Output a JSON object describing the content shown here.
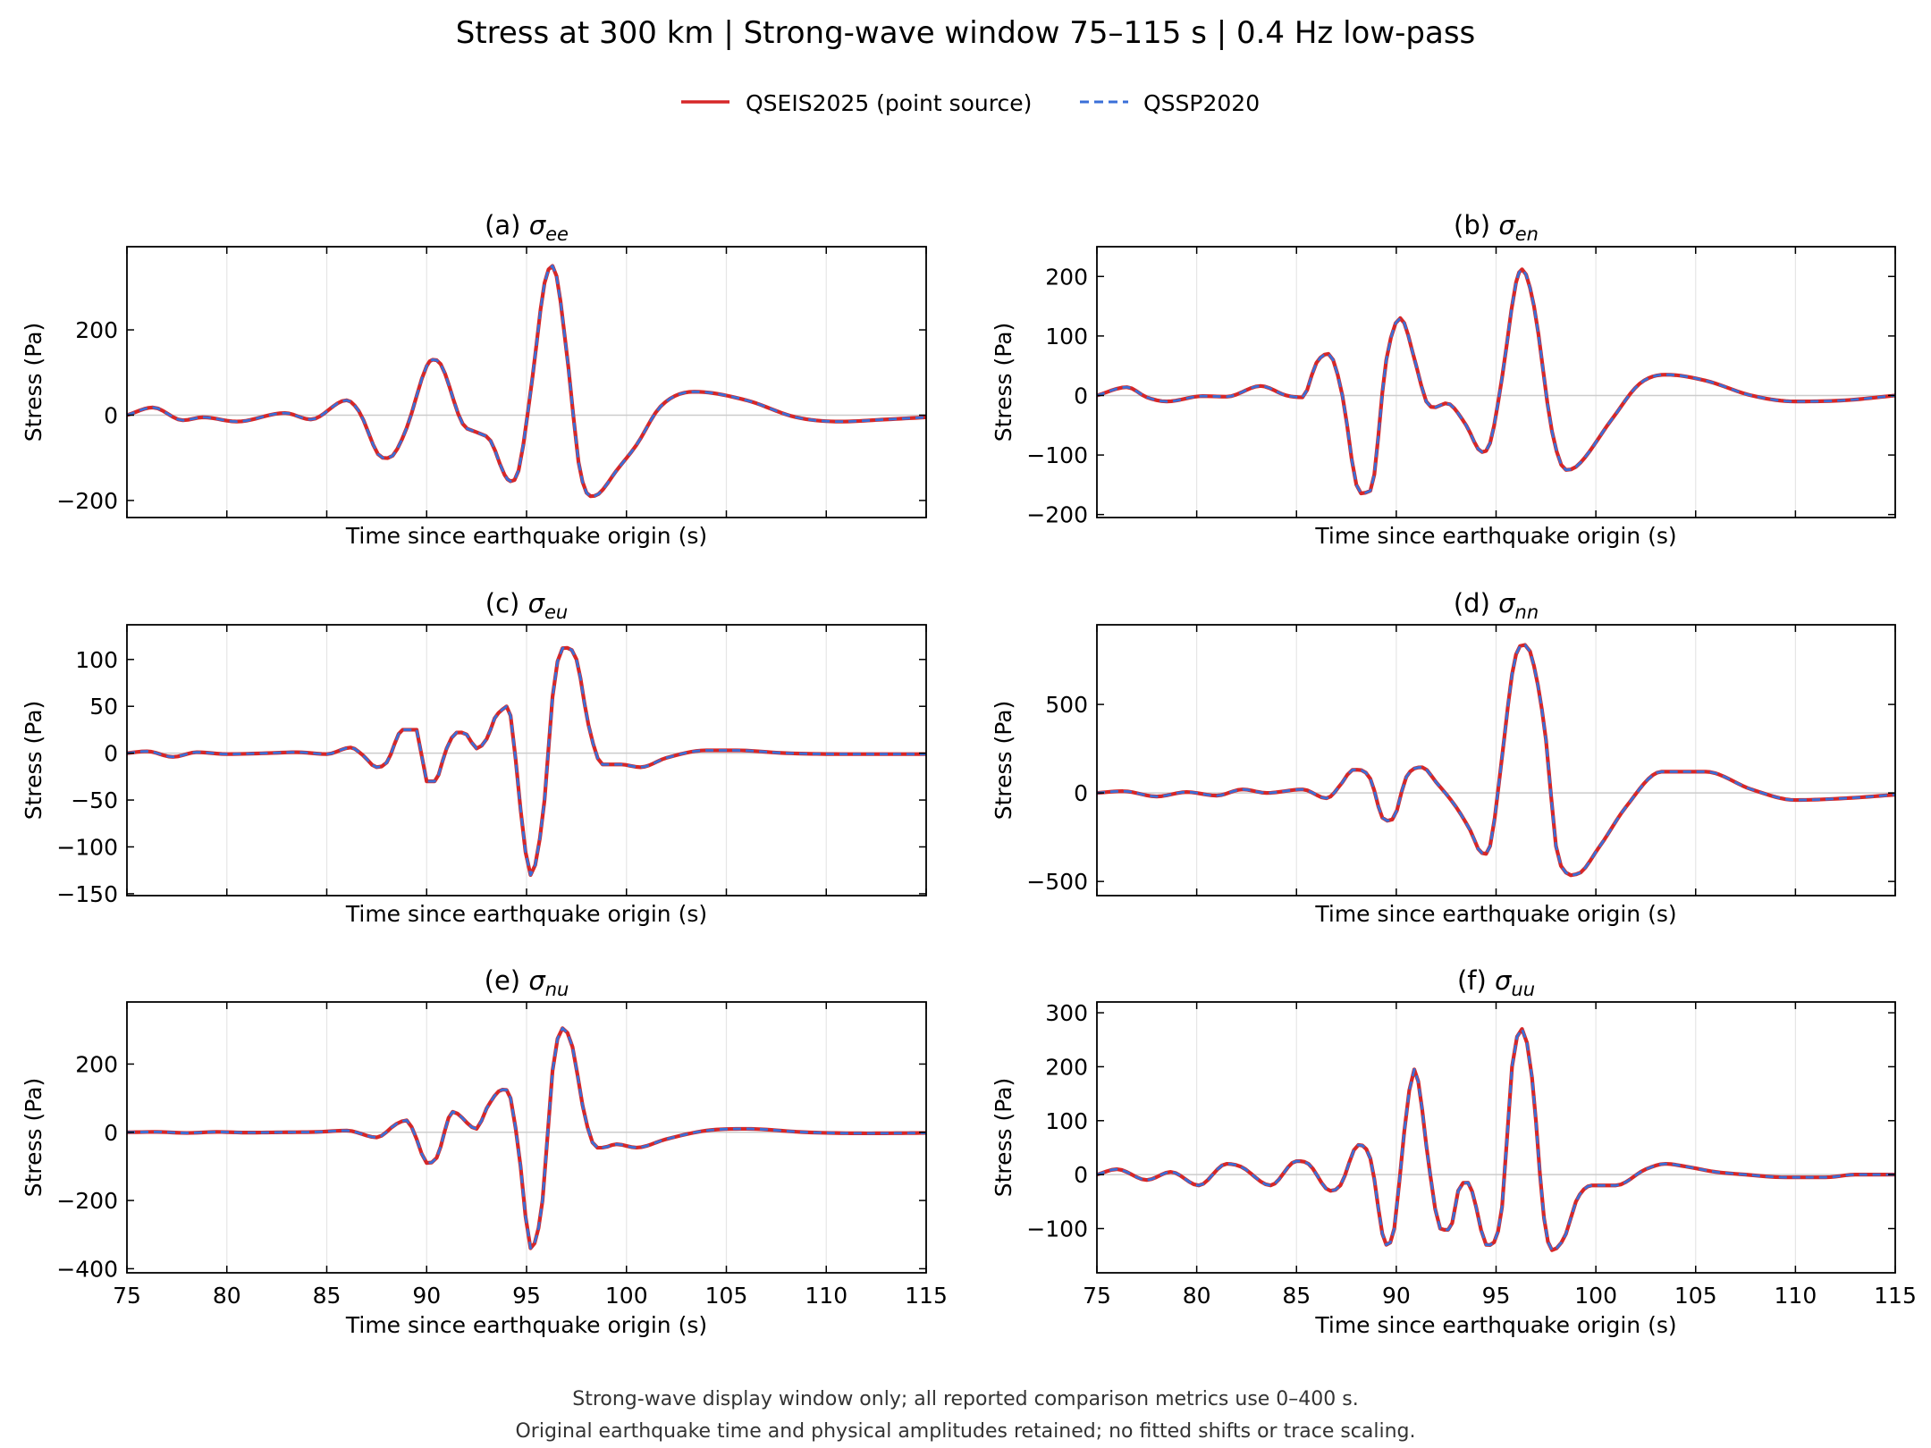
{
  "figure": {
    "title": "Stress at 300 km | Strong-wave window 75–115 s | 0.4 Hz low-pass",
    "notes": [
      "Strong-wave display window only; all reported comparison metrics use 0–400 s.",
      "Original earthquake time and physical amplitudes retained; no fitted shifts or trace scaling."
    ],
    "legend": {
      "placement": "top-center",
      "entries": [
        {
          "label": "QSEIS2025 (point source)",
          "color": "#d62728",
          "style": "solid"
        },
        {
          "label": "QSSP2020",
          "color": "#3a6fd8",
          "style": "dashed"
        }
      ]
    }
  },
  "colors": {
    "qseis": "#d62728",
    "qssp": "#3a6fd8",
    "grid": "#e6e6e6",
    "zero_line": "#cccccc"
  },
  "chart_data": [
    {
      "type": "line",
      "id": "a",
      "title_prefix": "(a) ",
      "sigma_sub": "ee",
      "xlabel": "Time since earthquake origin (s)",
      "ylabel": "Stress (Pa)",
      "xlim": [
        75,
        115
      ],
      "ylim": [
        -240,
        395
      ],
      "xticks": [
        75,
        80,
        85,
        90,
        95,
        100,
        105,
        110,
        115
      ],
      "show_x_tick_labels": false,
      "yticks": [
        -200,
        0,
        200
      ],
      "ytick_labels": [
        "−200",
        "0",
        "200"
      ],
      "series": [
        {
          "name": "QSEIS2025 (point source)",
          "x": [
            75,
            76.3,
            77.8,
            78.8,
            80.5,
            82.9,
            84.2,
            86,
            86.6,
            87.8,
            88.3,
            89,
            90,
            90.3,
            90.7,
            91.8,
            92.5,
            93.2,
            93.9,
            94.2,
            94.6,
            95.3,
            95.9,
            96.3,
            97.1,
            97.6,
            98.2,
            98.6,
            99.5,
            100.5,
            101.7,
            103.4,
            106,
            108.5,
            110.7,
            113,
            115
          ],
          "y": [
            0,
            18,
            -12,
            -5,
            -15,
            5,
            -10,
            35,
            10,
            -100,
            -95,
            -30,
            115,
            130,
            120,
            -20,
            -40,
            -60,
            -140,
            -155,
            -130,
            90,
            310,
            350,
            110,
            -110,
            -190,
            -185,
            -130,
            -70,
            20,
            55,
            35,
            -5,
            -15,
            -10,
            -5
          ]
        }
      ]
    },
    {
      "type": "line",
      "id": "b",
      "title_prefix": "(b) ",
      "sigma_sub": "en",
      "xlabel": "Time since earthquake origin (s)",
      "ylabel": "Stress (Pa)",
      "xlim": [
        75,
        115
      ],
      "ylim": [
        -205,
        250
      ],
      "xticks": [
        75,
        80,
        85,
        90,
        95,
        100,
        105,
        110,
        115
      ],
      "show_x_tick_labels": false,
      "yticks": [
        -200,
        -100,
        0,
        100,
        200
      ],
      "ytick_labels": [
        "−200",
        "−100",
        "0",
        "100",
        "200"
      ],
      "series": [
        {
          "name": "QSEIS2025 (point source)",
          "x": [
            75,
            76.5,
            77.5,
            78.5,
            80.3,
            81.5,
            83.2,
            84.5,
            85.3,
            86,
            86.6,
            87.3,
            88,
            88.7,
            89.5,
            90.2,
            91,
            91.5,
            92.7,
            93.5,
            94.3,
            94.7,
            95.3,
            96,
            96.3,
            96.9,
            97.8,
            98.5,
            99,
            100.8,
            102.2,
            103.5,
            105.5,
            107.8,
            110,
            112.5,
            115
          ],
          "y": [
            0,
            14,
            -3,
            -10,
            -1,
            -2,
            16,
            0,
            -3,
            55,
            70,
            0,
            -150,
            -160,
            60,
            130,
            50,
            -10,
            -15,
            -50,
            -95,
            -80,
            30,
            190,
            212,
            150,
            -60,
            -125,
            -120,
            -40,
            20,
            35,
            25,
            0,
            -10,
            -8,
            0
          ]
        }
      ]
    },
    {
      "type": "line",
      "id": "c",
      "title_prefix": "(c) ",
      "sigma_sub": "eu",
      "xlabel": "Time since earthquake origin (s)",
      "ylabel": "Stress (Pa)",
      "xlim": [
        75,
        115
      ],
      "ylim": [
        -152,
        137
      ],
      "xticks": [
        75,
        80,
        85,
        90,
        95,
        100,
        105,
        110,
        115
      ],
      "show_x_tick_labels": false,
      "yticks": [
        -150,
        -100,
        -50,
        0,
        50,
        100
      ],
      "ytick_labels": [
        "−150",
        "−100",
        "−50",
        "0",
        "50",
        "100"
      ],
      "series": [
        {
          "name": "QSEIS2025 (point source)",
          "x": [
            75,
            76,
            77.3,
            78.5,
            80,
            82,
            83.5,
            85,
            86.2,
            86.8,
            87.5,
            88,
            88.8,
            89.5,
            90,
            90.4,
            91,
            91.5,
            92,
            92.5,
            93,
            93.6,
            94.2,
            94.7,
            95.2,
            95.9,
            96.3,
            96.8,
            97.5,
            98.1,
            98.8,
            99.7,
            100.7,
            102,
            104,
            105.5,
            108,
            111,
            115
          ],
          "y": [
            0,
            2,
            -4,
            1,
            -1,
            0,
            1,
            -1,
            6,
            -2,
            -15,
            -10,
            25,
            25,
            -30,
            -30,
            5,
            22,
            20,
            5,
            15,
            43,
            40,
            -60,
            -130,
            -50,
            60,
            112,
            100,
            30,
            -12,
            -12,
            -15,
            -5,
            3,
            3,
            0,
            -1,
            -1
          ]
        }
      ]
    },
    {
      "type": "line",
      "id": "d",
      "title_prefix": "(d) ",
      "sigma_sub": "nn",
      "xlabel": "Time since earthquake origin (s)",
      "ylabel": "Stress (Pa)",
      "xlim": [
        75,
        115
      ],
      "ylim": [
        -580,
        950
      ],
      "xticks": [
        75,
        80,
        85,
        90,
        95,
        100,
        105,
        110,
        115
      ],
      "show_x_tick_labels": false,
      "yticks": [
        -500,
        0,
        500
      ],
      "ytick_labels": [
        "−500",
        "0",
        "500"
      ],
      "series": [
        {
          "name": "QSEIS2025 (point source)",
          "x": [
            75,
            76.3,
            78,
            79.5,
            81,
            82.3,
            83.5,
            85.3,
            86.5,
            87.3,
            87.8,
            88.7,
            89.3,
            89.8,
            90.5,
            91.3,
            92,
            93,
            93.7,
            94.3,
            94.7,
            95.4,
            95.8,
            96.2,
            96.7,
            97.5,
            98,
            98.5,
            99,
            100.2,
            101.5,
            103.3,
            105.5,
            107.8,
            110,
            112.5,
            115
          ],
          "y": [
            0,
            10,
            -20,
            5,
            -15,
            20,
            0,
            20,
            -30,
            60,
            130,
            80,
            -140,
            -150,
            90,
            145,
            60,
            -80,
            -210,
            -340,
            -300,
            300,
            670,
            830,
            800,
            300,
            -300,
            -450,
            -460,
            -300,
            -80,
            120,
            120,
            20,
            -40,
            -30,
            -10
          ]
        }
      ]
    },
    {
      "type": "line",
      "id": "e",
      "title_prefix": "(e) ",
      "sigma_sub": "nu",
      "xlabel": "Time since earthquake origin (s)",
      "ylabel": "Stress (Pa)",
      "xlim": [
        75,
        115
      ],
      "ylim": [
        -412,
        382
      ],
      "xticks": [
        75,
        80,
        85,
        90,
        95,
        100,
        105,
        110,
        115
      ],
      "show_x_tick_labels": true,
      "yticks": [
        -400,
        -200,
        0,
        200
      ],
      "ytick_labels": [
        "−400",
        "−200",
        "0",
        "200"
      ],
      "series": [
        {
          "name": "QSEIS2025 (point source)",
          "x": [
            75,
            76.5,
            78,
            79.5,
            81,
            83,
            84.5,
            86,
            87.5,
            88.5,
            89,
            89.5,
            90,
            90.5,
            91.3,
            92.5,
            93,
            93.8,
            94.2,
            94.7,
            95.2,
            95.8,
            96.3,
            96.8,
            97.3,
            97.8,
            98.3,
            98.8,
            99.5,
            100.5,
            102,
            104,
            106,
            109,
            112,
            115
          ],
          "y": [
            0,
            1,
            -2,
            1,
            -1,
            0,
            1,
            5,
            -15,
            25,
            35,
            -20,
            -90,
            -75,
            60,
            10,
            70,
            125,
            100,
            -100,
            -340,
            -200,
            180,
            305,
            250,
            80,
            -30,
            -45,
            -35,
            -45,
            -20,
            5,
            10,
            0,
            -3,
            -2
          ]
        }
      ]
    },
    {
      "type": "line",
      "id": "f",
      "title_prefix": "(f) ",
      "sigma_sub": "uu",
      "xlabel": "Time since earthquake origin (s)",
      "ylabel": "Stress (Pa)",
      "xlim": [
        75,
        115
      ],
      "ylim": [
        -182,
        320
      ],
      "xticks": [
        75,
        80,
        85,
        90,
        95,
        100,
        105,
        110,
        115
      ],
      "show_x_tick_labels": true,
      "yticks": [
        -100,
        0,
        100,
        200,
        300
      ],
      "ytick_labels": [
        "−100",
        "0",
        "100",
        "200",
        "300"
      ],
      "series": [
        {
          "name": "QSEIS2025 (point source)",
          "x": [
            75,
            76,
            77.5,
            78.7,
            80.1,
            81.5,
            82.2,
            83.7,
            85,
            85.6,
            86.7,
            87.2,
            88.1,
            88.7,
            89.5,
            89.9,
            90.4,
            90.9,
            91.7,
            92.2,
            92.8,
            93.1,
            93.6,
            94,
            94.5,
            95.3,
            95.8,
            96.3,
            96.8,
            97.4,
            97.8,
            98.5,
            99,
            99.8,
            101,
            102.5,
            103.5,
            104.5,
            106,
            107.5,
            109.5,
            111.5,
            113,
            115
          ],
          "y": [
            0,
            10,
            -10,
            5,
            -20,
            20,
            15,
            -20,
            25,
            20,
            -30,
            -20,
            55,
            30,
            -130,
            -100,
            80,
            195,
            0,
            -100,
            -90,
            -30,
            -15,
            -60,
            -130,
            -60,
            200,
            270,
            180,
            -80,
            -140,
            -110,
            -50,
            -20,
            -20,
            10,
            20,
            15,
            5,
            0,
            -5,
            -5,
            0,
            0
          ]
        }
      ]
    }
  ]
}
